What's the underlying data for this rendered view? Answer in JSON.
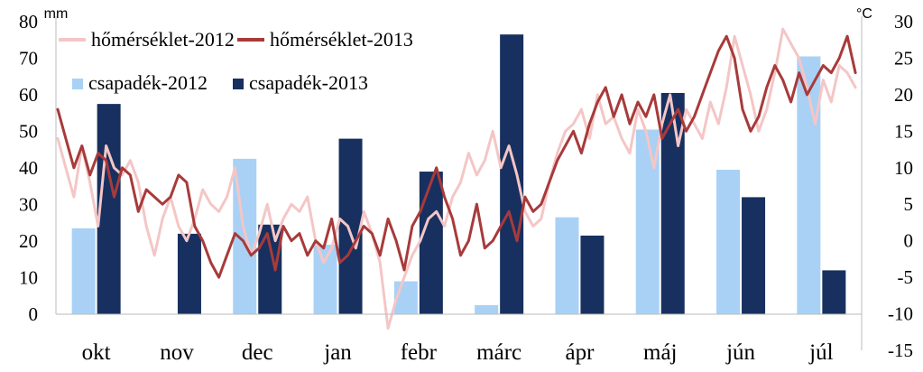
{
  "chart_data": {
    "type": "bar+line",
    "title": "",
    "left_axis": {
      "label": "mm",
      "ylim": [
        0,
        80
      ],
      "ticks": [
        0,
        10,
        20,
        30,
        40,
        50,
        60,
        70,
        80
      ]
    },
    "right_axis": {
      "label": "°C",
      "ylim": [
        -15,
        30
      ],
      "ticks": [
        -15,
        -10,
        -5,
        0,
        5,
        10,
        15,
        20,
        25,
        30
      ]
    },
    "categories": [
      "okt",
      "nov",
      "dec",
      "jan",
      "febr",
      "márc",
      "ápr",
      "máj",
      "jún",
      "júl"
    ],
    "bar_series": [
      {
        "name": "csapadék-2012",
        "color": "#a9d1f5",
        "values": [
          23.5,
          0,
          42.5,
          19,
          9,
          2.5,
          26.5,
          50.5,
          39.5,
          70.5
        ]
      },
      {
        "name": "csapadék-2013",
        "color": "#17305f",
        "values": [
          57.5,
          22,
          24.5,
          48,
          39,
          76.5,
          21.5,
          60.5,
          32,
          12
        ]
      }
    ],
    "line_series": [
      {
        "name": "hőmérséklet-2012",
        "color": "#f4c6c6",
        "x": [
          0,
          0.1,
          0.2,
          0.3,
          0.4,
          0.5,
          0.6,
          0.7,
          0.8,
          0.9,
          1.0,
          1.1,
          1.2,
          1.3,
          1.4,
          1.5,
          1.6,
          1.7,
          1.8,
          1.9,
          2.0,
          2.1,
          2.2,
          2.3,
          2.4,
          2.5,
          2.6,
          2.7,
          2.8,
          2.9,
          3.0,
          3.1,
          3.2,
          3.3,
          3.4,
          3.5,
          3.6,
          3.7,
          3.8,
          3.9,
          4.0,
          4.1,
          4.2,
          4.3,
          4.4,
          4.5,
          4.6,
          4.7,
          4.8,
          4.9,
          5.0,
          5.1,
          5.2,
          5.3,
          5.4,
          5.5,
          5.6,
          5.7,
          5.8,
          5.9,
          6.0,
          6.1,
          6.2,
          6.3,
          6.4,
          6.5,
          6.6,
          6.7,
          6.8,
          6.9,
          7.0,
          7.1,
          7.2,
          7.3,
          7.4,
          7.5,
          7.6,
          7.7,
          7.8,
          7.9,
          8.0,
          8.1,
          8.2,
          8.3,
          8.4,
          8.5,
          8.6,
          8.7,
          8.8,
          8.9,
          9.0,
          9.1,
          9.2,
          9.3,
          9.4,
          9.5,
          9.6,
          9.7,
          9.8,
          9.9
        ],
        "values": [
          14,
          10,
          6,
          13,
          8,
          2,
          13,
          10,
          9,
          11,
          8,
          2,
          -2,
          3,
          6,
          2,
          0,
          3,
          7,
          5,
          4,
          6,
          10,
          2,
          -2,
          1,
          5,
          0,
          3,
          5,
          4,
          6,
          0,
          -3,
          -1,
          3,
          2,
          -1,
          4,
          1,
          -3,
          -12,
          -8,
          -5,
          -2,
          0,
          3,
          4,
          2,
          6,
          8,
          12,
          9,
          11,
          15,
          10,
          13,
          9,
          4,
          2,
          3,
          8,
          12,
          15,
          16,
          18,
          14,
          20,
          16,
          17,
          14,
          12,
          18,
          15,
          10,
          16,
          20,
          13,
          18,
          16,
          14,
          19,
          16,
          21,
          28,
          24,
          20,
          15,
          18,
          23,
          29,
          27,
          25,
          21,
          16,
          22,
          19,
          24,
          23,
          21
        ]
      },
      {
        "name": "hőmérséklet-2013",
        "color": "#a83a3a",
        "x": [
          0,
          0.1,
          0.2,
          0.3,
          0.4,
          0.5,
          0.6,
          0.7,
          0.8,
          0.9,
          1.0,
          1.1,
          1.2,
          1.3,
          1.4,
          1.5,
          1.6,
          1.7,
          1.8,
          1.9,
          2.0,
          2.1,
          2.2,
          2.3,
          2.4,
          2.5,
          2.6,
          2.7,
          2.8,
          2.9,
          3.0,
          3.1,
          3.2,
          3.3,
          3.4,
          3.5,
          3.6,
          3.7,
          3.8,
          3.9,
          4.0,
          4.1,
          4.2,
          4.3,
          4.4,
          4.5,
          4.6,
          4.7,
          4.8,
          4.9,
          5.0,
          5.1,
          5.2,
          5.3,
          5.4,
          5.5,
          5.6,
          5.7,
          5.8,
          5.9,
          6.0,
          6.1,
          6.2,
          6.3,
          6.4,
          6.5,
          6.6,
          6.7,
          6.8,
          6.9,
          7.0,
          7.1,
          7.2,
          7.3,
          7.4,
          7.5,
          7.6,
          7.7,
          7.8,
          7.9,
          8.0,
          8.1,
          8.2,
          8.3,
          8.4,
          8.5,
          8.6,
          8.7,
          8.8,
          8.9,
          9.0,
          9.1,
          9.2,
          9.3,
          9.4,
          9.5,
          9.6,
          9.7,
          9.8,
          9.9
        ],
        "values": [
          18,
          14,
          10,
          13,
          9,
          12,
          11,
          6,
          10,
          9,
          4,
          7,
          6,
          5,
          6,
          9,
          8,
          2,
          0,
          -3,
          -5,
          -2,
          1,
          0,
          -2,
          -1,
          1,
          -4,
          2,
          0,
          1,
          -2,
          0,
          -1,
          3,
          -3,
          -2,
          0,
          2,
          1,
          -2,
          3,
          0,
          -4,
          2,
          4,
          7,
          10,
          6,
          3,
          -2,
          0,
          5,
          -1,
          0,
          2,
          4,
          0,
          6,
          4,
          5,
          8,
          11,
          13,
          15,
          12,
          16,
          19,
          21,
          17,
          20,
          16,
          19,
          17,
          20,
          14,
          16,
          18,
          15,
          17,
          20,
          23,
          26,
          28,
          25,
          18,
          15,
          17,
          21,
          24,
          22,
          19,
          23,
          20,
          22,
          24,
          23,
          25,
          28,
          23
        ]
      }
    ]
  }
}
